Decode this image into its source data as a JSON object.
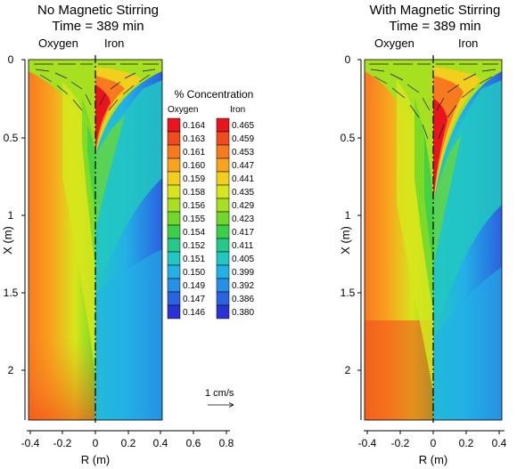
{
  "panels": [
    {
      "title_line1": "No Magnetic Stirring",
      "title_line2": "Time = 389 min",
      "left_label": "Oxygen",
      "right_label": "Iron",
      "xlabel": "R (m)",
      "ylabel": "X (m)",
      "x_ticks": [
        "-0.4",
        "-0.2",
        "0",
        "0.2",
        "0.4",
        "0.6",
        "0.8"
      ],
      "y_ticks": [
        "0",
        "0.5",
        "1",
        "1.5",
        "2"
      ]
    },
    {
      "title_line1": "With Magnetic Stirring",
      "title_line2": "Time = 389 min",
      "left_label": "Oxygen",
      "right_label": "Iron",
      "xlabel": "R (m)",
      "ylabel": "X (m)",
      "x_ticks": [
        "-0.4",
        "-0.2",
        "0",
        "0.2",
        "0.4"
      ],
      "y_ticks": [
        "0",
        "0.5",
        "1",
        "1.5",
        "2"
      ]
    }
  ],
  "legend": {
    "title": "% Concentration",
    "oxygen_header": "Oxygen",
    "iron_header": "Iron",
    "oxygen_values": [
      "0.164",
      "0.163",
      "0.161",
      "0.160",
      "0.159",
      "0.158",
      "0.156",
      "0.155",
      "0.154",
      "0.152",
      "0.151",
      "0.150",
      "0.149",
      "0.147",
      "0.146"
    ],
    "iron_values": [
      "0.465",
      "0.459",
      "0.453",
      "0.447",
      "0.441",
      "0.435",
      "0.429",
      "0.423",
      "0.417",
      "0.411",
      "0.405",
      "0.399",
      "0.392",
      "0.386",
      "0.380"
    ],
    "colors": [
      "#e8141e",
      "#f04a1e",
      "#f77a1e",
      "#f8a41e",
      "#f2cf1c",
      "#d7e61c",
      "#a6e020",
      "#6fd82a",
      "#3ccf4a",
      "#27c98a",
      "#22c7c2",
      "#23b0e6",
      "#2590e8",
      "#2a62e0",
      "#2a32d6"
    ]
  },
  "vector_scale": "1 cm/s"
}
